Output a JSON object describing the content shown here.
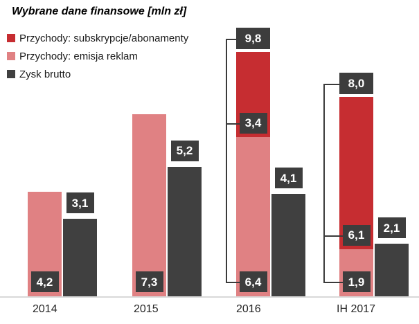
{
  "title": "Wybrane dane finansowe [mln zł]",
  "legend": {
    "items": [
      {
        "label": "Przychody: subskrypcje/abonamenty",
        "color": "#C62D31"
      },
      {
        "label": "Przychody: emisja reklam",
        "color": "#E08183"
      },
      {
        "label": "Zysk brutto",
        "color": "#404040"
      }
    ]
  },
  "colors": {
    "subscriptions": "#C62D31",
    "ads": "#E08183",
    "profit": "#404040",
    "label_box": "#3D3D3D",
    "label_text": "#FFFFFF",
    "axis_line": "#D9D9D9",
    "bracket_line": "#3A3A3A"
  },
  "chart_data": {
    "type": "bar",
    "title": "Wybrane dane finansowe [mln zł]",
    "unit": "mln zł",
    "legend_position": "top-left",
    "grid": false,
    "ylim": [
      0,
      10.5
    ],
    "categories": [
      "2014",
      "2015",
      "2016",
      "IH 2017"
    ],
    "series": [
      {
        "name": "Przychody: subskrypcje/abonamenty",
        "type": "stacked-top",
        "values": [
          null,
          null,
          3.4,
          6.1
        ]
      },
      {
        "name": "Przychody: emisja reklam",
        "type": "stacked-bottom",
        "values": [
          4.2,
          7.3,
          6.4,
          1.9
        ]
      },
      {
        "name": "Zysk brutto",
        "type": "separate-bar",
        "values": [
          3.1,
          5.2,
          4.1,
          2.1
        ]
      }
    ],
    "stack_totals": [
      null,
      null,
      9.8,
      8.0
    ],
    "groups": [
      {
        "category": "2014",
        "ads": 4.2,
        "ads_label": "4,2",
        "subs": null,
        "subs_label": null,
        "total": null,
        "total_label": null,
        "profit": 3.1,
        "profit_label": "3,1",
        "bracket": false
      },
      {
        "category": "2015",
        "ads": 7.3,
        "ads_label": "7,3",
        "subs": null,
        "subs_label": null,
        "total": null,
        "total_label": null,
        "profit": 5.2,
        "profit_label": "5,2",
        "bracket": false
      },
      {
        "category": "2016",
        "ads": 6.4,
        "ads_label": "6,4",
        "subs": 3.4,
        "subs_label": "3,4",
        "total": 9.8,
        "total_label": "9,8",
        "profit": 4.1,
        "profit_label": "4,1",
        "bracket": true
      },
      {
        "category": "IH 2017",
        "ads": 1.9,
        "ads_label": "1,9",
        "subs": 6.1,
        "subs_label": "6,1",
        "total": 8.0,
        "total_label": "8,0",
        "profit": 2.1,
        "profit_label": "2,1",
        "bracket": true
      }
    ]
  }
}
